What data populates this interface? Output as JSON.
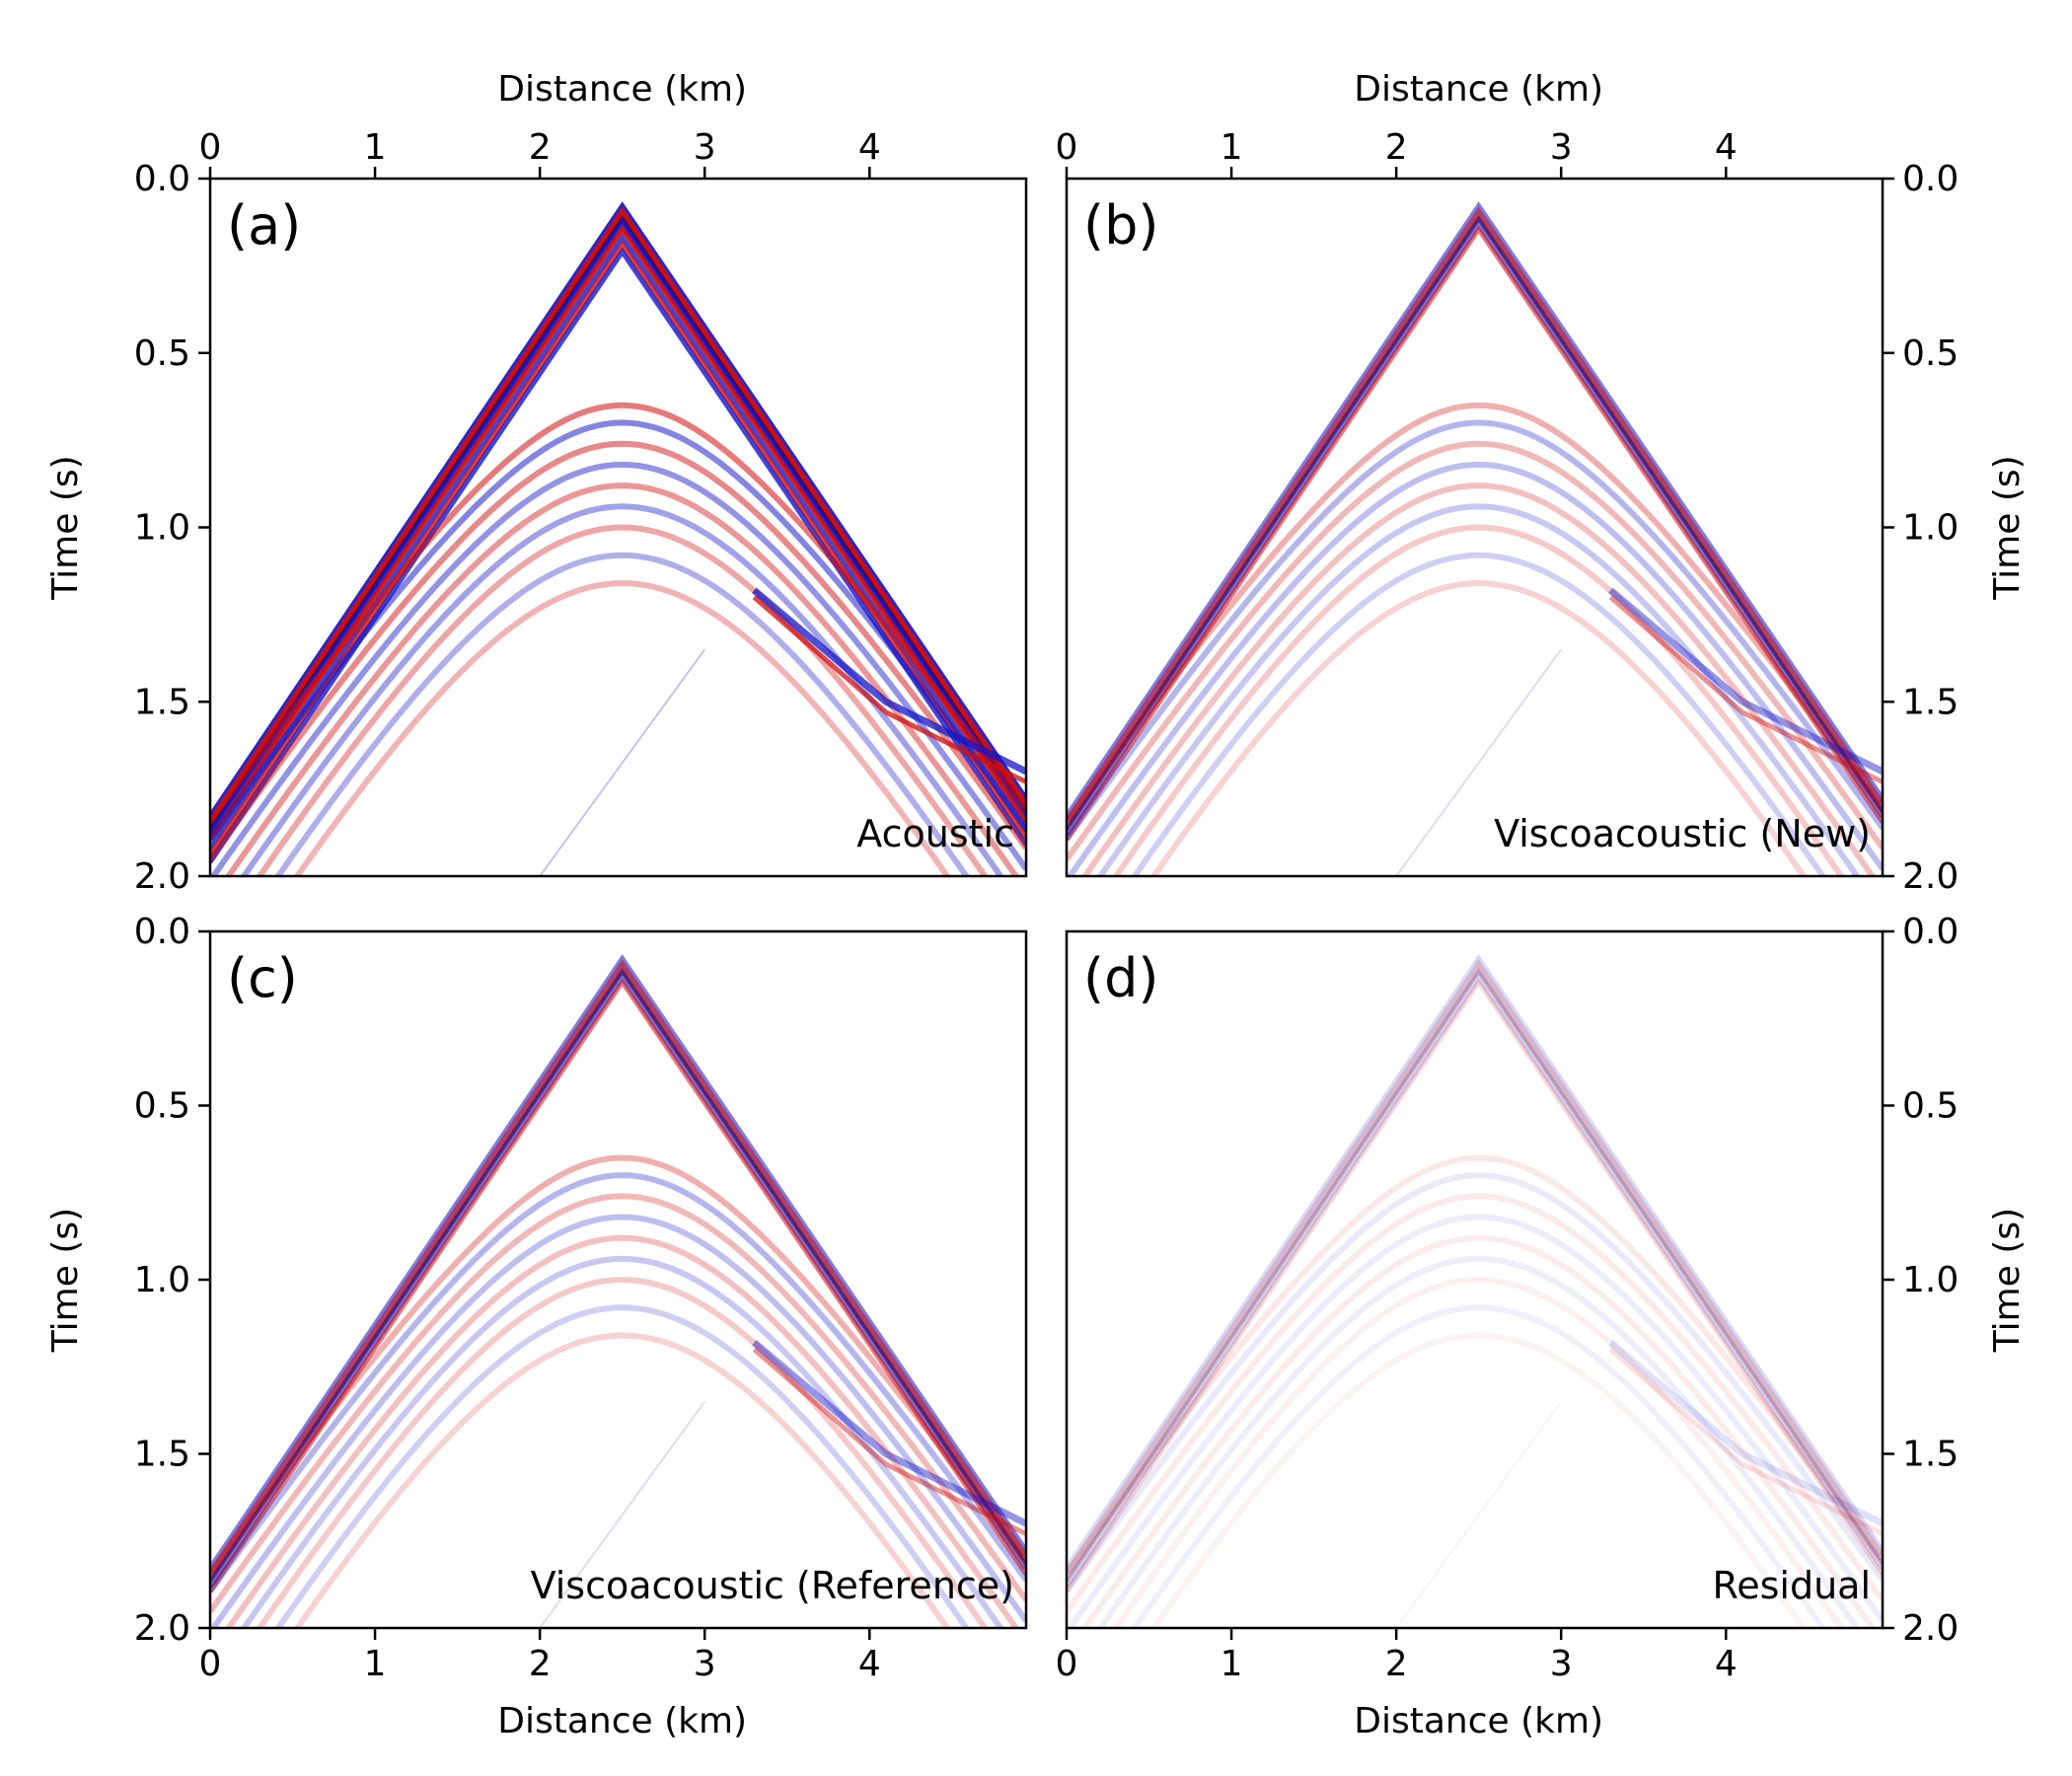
{
  "colors": {
    "positive": "#d10d0d",
    "negative": "#1414c8",
    "peak": "#5a0000",
    "background": "#ffffff",
    "axis": "#000000"
  },
  "colormap": "seismic (blue-white-red)",
  "chart_data": [
    {
      "type": "heatmap",
      "panel": "(a)",
      "label": "Acoustic",
      "xlabel": "Distance (km)",
      "ylabel": "Time (s)",
      "xlabel_position": "top",
      "ylabel_position": "left",
      "xlim": [
        0,
        4.95
      ],
      "ylim": [
        0,
        2.0
      ],
      "y_inverted": true,
      "xticks": [
        0,
        1,
        2,
        3,
        4
      ],
      "yticks": [
        "0.0",
        "0.5",
        "1.0",
        "1.5",
        "2.0"
      ],
      "source_x": 2.5,
      "direct_wave_apex": [
        2.5,
        0.1
      ],
      "direct_wave_at_edges": [
        [
          0,
          1.85
        ],
        [
          4.95,
          1.8
        ]
      ],
      "reflection_apex": [
        2.5,
        0.65
      ],
      "relative_amplitude": 1.0
    },
    {
      "type": "heatmap",
      "panel": "(b)",
      "label": "Viscoacoustic (New)",
      "xlabel": "Distance (km)",
      "ylabel": "Time (s)",
      "xlabel_position": "top",
      "ylabel_position": "right",
      "xlim": [
        0,
        4.95
      ],
      "ylim": [
        0,
        2.0
      ],
      "y_inverted": true,
      "xticks": [
        0,
        1,
        2,
        3,
        4
      ],
      "yticks": [
        "0.0",
        "0.5",
        "1.0",
        "1.5",
        "2.0"
      ],
      "source_x": 2.5,
      "direct_wave_apex": [
        2.5,
        0.1
      ],
      "direct_wave_at_edges": [
        [
          0,
          1.85
        ],
        [
          4.95,
          1.8
        ]
      ],
      "reflection_apex": [
        2.5,
        0.65
      ],
      "relative_amplitude": 0.6
    },
    {
      "type": "heatmap",
      "panel": "(c)",
      "label": "Viscoacoustic (Reference)",
      "xlabel": "Distance (km)",
      "ylabel": "Time (s)",
      "xlabel_position": "bottom",
      "ylabel_position": "left",
      "xlim": [
        0,
        4.95
      ],
      "ylim": [
        0,
        2.0
      ],
      "y_inverted": true,
      "xticks": [
        0,
        1,
        2,
        3,
        4
      ],
      "yticks": [
        "0.0",
        "0.5",
        "1.0",
        "1.5",
        "2.0"
      ],
      "source_x": 2.5,
      "direct_wave_apex": [
        2.5,
        0.1
      ],
      "direct_wave_at_edges": [
        [
          0,
          1.85
        ],
        [
          4.95,
          1.8
        ]
      ],
      "reflection_apex": [
        2.5,
        0.65
      ],
      "relative_amplitude": 0.6
    },
    {
      "type": "heatmap",
      "panel": "(d)",
      "label": "Residual",
      "xlabel": "Distance (km)",
      "ylabel": "Time (s)",
      "xlabel_position": "bottom",
      "ylabel_position": "right",
      "xlim": [
        0,
        4.95
      ],
      "ylim": [
        0,
        2.0
      ],
      "y_inverted": true,
      "xticks": [
        0,
        1,
        2,
        3,
        4
      ],
      "yticks": [
        "0.0",
        "0.5",
        "1.0",
        "1.5",
        "2.0"
      ],
      "source_x": 2.5,
      "direct_wave_apex": [
        2.5,
        0.1
      ],
      "direct_wave_at_edges": [
        [
          0,
          1.85
        ],
        [
          4.95,
          1.8
        ]
      ],
      "reflection_apex": [
        2.5,
        0.65
      ],
      "relative_amplitude": 0.18
    }
  ]
}
